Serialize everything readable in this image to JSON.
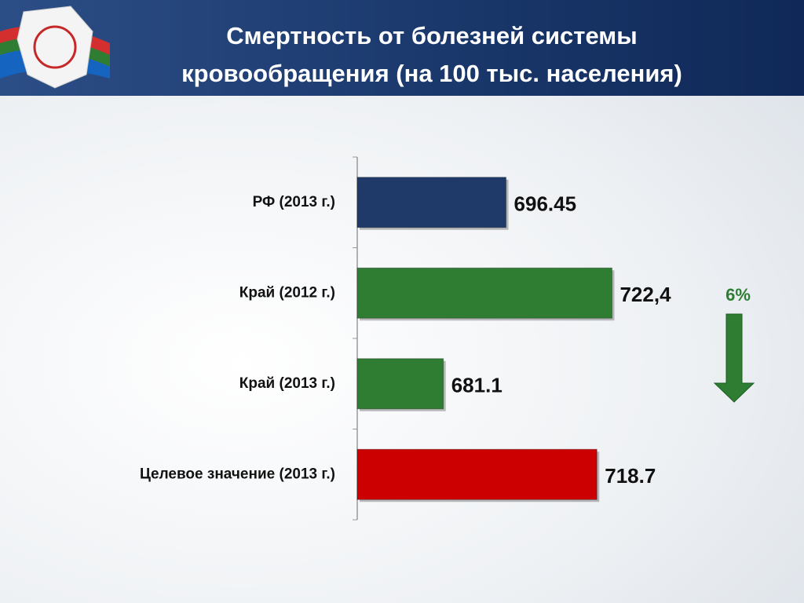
{
  "chart_data": {
    "type": "bar",
    "orientation": "horizontal",
    "title": "Смертность от болезней системы кровообращения (на 100 тыс. населения)",
    "categories": [
      "РФ (2013 г.)",
      "Край (2012 г.)",
      "Край (2013 г.)",
      "Целевое значение (2013 г.)"
    ],
    "values": [
      696.45,
      722.4,
      681.1,
      718.7
    ],
    "value_labels": [
      "696.45",
      "722,4",
      "681.1",
      "718.7"
    ],
    "colors": [
      "#1f3a68",
      "#2e7d32",
      "#2e7d32",
      "#cc0000"
    ],
    "xlim": [
      660,
      740
    ],
    "annotation": "6%"
  }
}
